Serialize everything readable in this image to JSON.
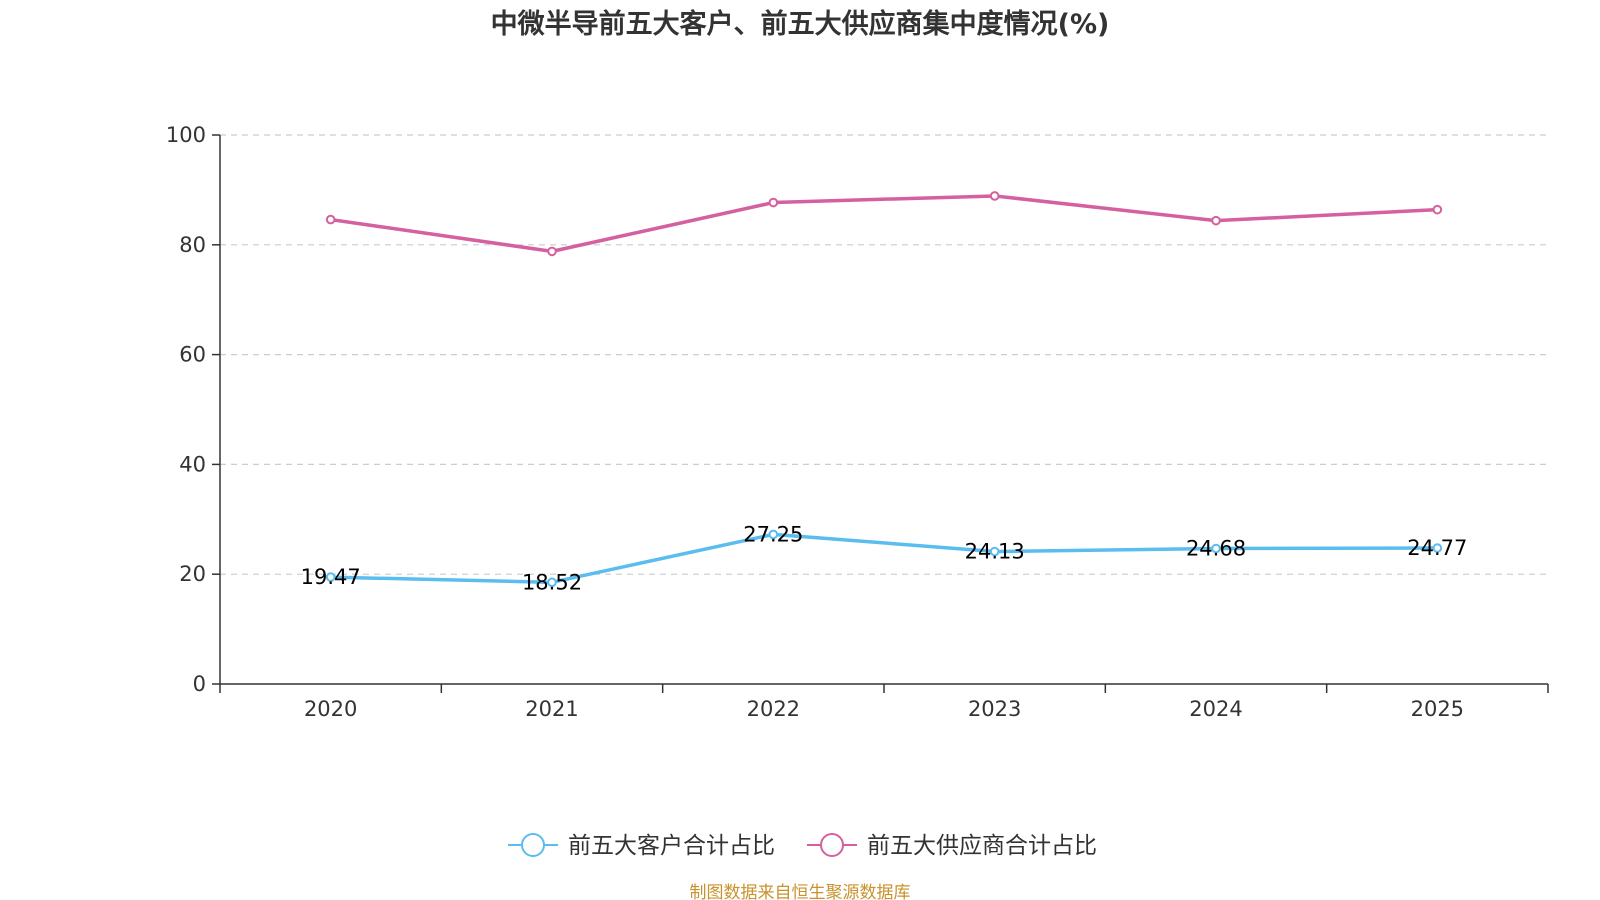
{
  "chart_data": {
    "type": "line",
    "title": "中微半导前五大客户、前五大供应商集中度情况(%)",
    "categories": [
      "2020",
      "2021",
      "2022",
      "2023",
      "2024",
      "2025"
    ],
    "ylim": [
      0,
      100
    ],
    "yticks": [
      0,
      20,
      40,
      60,
      80,
      100
    ],
    "xlabel": "",
    "ylabel": "",
    "grid": true,
    "legend_position": "bottom-center",
    "series": [
      {
        "name": "前五大客户合计占比",
        "color": "#5bbcf0",
        "values": [
          19.47,
          18.52,
          27.25,
          24.13,
          24.68,
          24.77
        ],
        "show_labels": true
      },
      {
        "name": "前五大供应商合计占比",
        "color": "#d4609f",
        "values": [
          84.6,
          78.8,
          87.7,
          88.9,
          84.4,
          86.4
        ],
        "show_labels": false
      }
    ],
    "source": "制图数据来自恒生聚源数据库",
    "source_color": "#c8922c"
  }
}
